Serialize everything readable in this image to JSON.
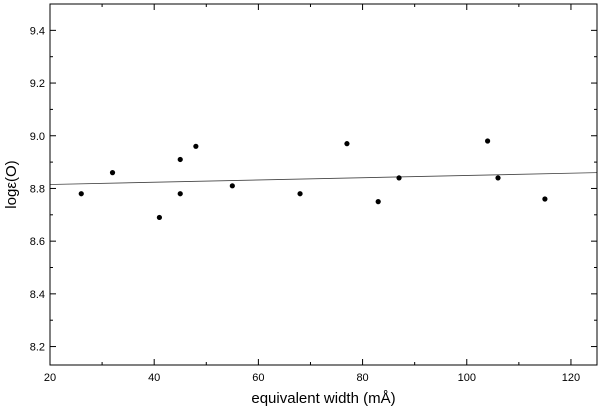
{
  "chart_data": {
    "type": "scatter",
    "title": "",
    "xlabel": "equivalent width (mÅ)",
    "ylabel": "logε(O)",
    "xlim": [
      20,
      125
    ],
    "ylim": [
      8.13,
      9.5
    ],
    "x_ticks": [
      20,
      40,
      60,
      80,
      100,
      120
    ],
    "x_tick_labels": [
      "20",
      "40",
      "60",
      "80",
      "100",
      "120"
    ],
    "y_ticks": [
      8.2,
      8.4,
      8.6,
      8.8,
      9.0,
      9.2,
      9.4
    ],
    "y_tick_labels": [
      "8.2",
      "8.4",
      "8.6",
      "8.8",
      "9.0",
      "9.2",
      "9.4"
    ],
    "grid": false,
    "legend": "none",
    "points": [
      {
        "x": 26,
        "y": 8.78
      },
      {
        "x": 32,
        "y": 8.86
      },
      {
        "x": 41,
        "y": 8.69
      },
      {
        "x": 45,
        "y": 8.91
      },
      {
        "x": 45,
        "y": 8.78
      },
      {
        "x": 48,
        "y": 8.96
      },
      {
        "x": 55,
        "y": 8.81
      },
      {
        "x": 68,
        "y": 8.78
      },
      {
        "x": 77,
        "y": 8.97
      },
      {
        "x": 83,
        "y": 8.75
      },
      {
        "x": 87,
        "y": 8.84
      },
      {
        "x": 104,
        "y": 8.98
      },
      {
        "x": 106,
        "y": 8.84
      },
      {
        "x": 115,
        "y": 8.76
      }
    ],
    "fit_line": {
      "x": [
        20,
        125
      ],
      "y": [
        8.815,
        8.86
      ]
    },
    "colors": {
      "points": "#000000",
      "fit_line": "#444444",
      "axes": "#000000"
    }
  }
}
